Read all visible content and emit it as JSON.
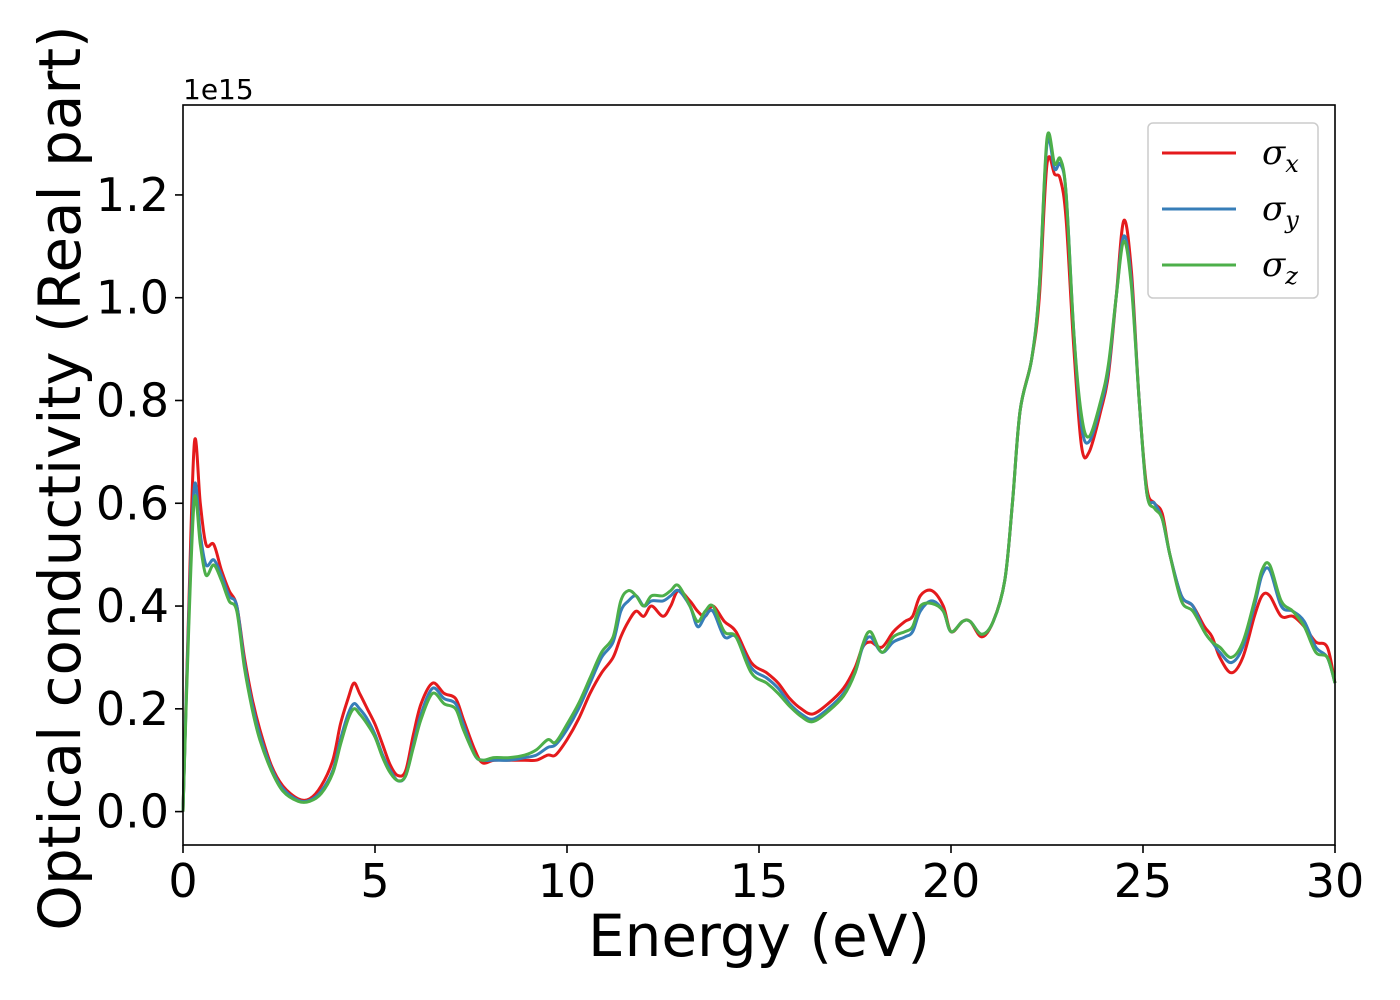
{
  "chart_data": {
    "type": "line",
    "title": "",
    "xlabel": "Energy (eV)",
    "ylabel": "Optical conductivity (Real part)",
    "y_offset_label": "1e15",
    "xlim": [
      0,
      30
    ],
    "ylim": [
      -0.065,
      1.375
    ],
    "x_ticks": [
      0,
      5,
      10,
      15,
      20,
      25,
      30
    ],
    "x_tick_labels": [
      "0",
      "5",
      "10",
      "15",
      "20",
      "25",
      "30"
    ],
    "y_ticks": [
      0.0,
      0.2,
      0.4,
      0.6,
      0.8,
      1.0,
      1.2
    ],
    "y_tick_labels": [
      "0.0",
      "0.2",
      "0.4",
      "0.6",
      "0.8",
      "1.0",
      "1.2"
    ],
    "grid": false,
    "legend_position": "top-right",
    "x": [
      0,
      0.15,
      0.3,
      0.45,
      0.6,
      0.8,
      1.0,
      1.2,
      1.4,
      1.6,
      1.8,
      2.0,
      2.3,
      2.6,
      3.0,
      3.3,
      3.6,
      3.9,
      4.1,
      4.3,
      4.45,
      4.6,
      4.8,
      5.0,
      5.2,
      5.4,
      5.6,
      5.8,
      6.0,
      6.2,
      6.5,
      6.8,
      7.1,
      7.3,
      7.6,
      7.8,
      8.1,
      8.5,
      8.9,
      9.2,
      9.5,
      9.7,
      10.0,
      10.3,
      10.6,
      10.9,
      11.2,
      11.4,
      11.6,
      11.8,
      12.0,
      12.2,
      12.5,
      12.7,
      12.9,
      13.2,
      13.4,
      13.6,
      13.8,
      14.1,
      14.4,
      14.8,
      15.2,
      15.5,
      15.8,
      16.1,
      16.4,
      16.8,
      17.2,
      17.5,
      17.7,
      17.9,
      18.2,
      18.5,
      18.8,
      19.0,
      19.2,
      19.5,
      19.8,
      20.0,
      20.3,
      20.5,
      20.8,
      21.1,
      21.4,
      21.6,
      21.8,
      22.1,
      22.3,
      22.5,
      22.7,
      22.85,
      23.0,
      23.2,
      23.4,
      23.6,
      23.9,
      24.1,
      24.3,
      24.5,
      24.7,
      24.9,
      25.1,
      25.3,
      25.5,
      25.7,
      26.0,
      26.3,
      26.6,
      26.8,
      27.0,
      27.3,
      27.6,
      27.9,
      28.1,
      28.3,
      28.6,
      28.9,
      29.2,
      29.5,
      29.8,
      30.0
    ],
    "series": [
      {
        "name": "σx",
        "color": "#e41a1c",
        "values": [
          0.0,
          0.4,
          0.72,
          0.6,
          0.52,
          0.52,
          0.47,
          0.43,
          0.4,
          0.3,
          0.22,
          0.16,
          0.09,
          0.05,
          0.025,
          0.025,
          0.05,
          0.1,
          0.17,
          0.22,
          0.25,
          0.23,
          0.2,
          0.17,
          0.13,
          0.09,
          0.07,
          0.08,
          0.15,
          0.21,
          0.25,
          0.23,
          0.22,
          0.18,
          0.12,
          0.095,
          0.1,
          0.1,
          0.1,
          0.1,
          0.11,
          0.11,
          0.14,
          0.18,
          0.23,
          0.27,
          0.3,
          0.34,
          0.37,
          0.39,
          0.38,
          0.4,
          0.38,
          0.4,
          0.43,
          0.41,
          0.39,
          0.38,
          0.4,
          0.37,
          0.35,
          0.29,
          0.27,
          0.25,
          0.22,
          0.2,
          0.19,
          0.21,
          0.24,
          0.28,
          0.32,
          0.33,
          0.32,
          0.35,
          0.37,
          0.38,
          0.42,
          0.43,
          0.4,
          0.35,
          0.37,
          0.37,
          0.34,
          0.37,
          0.45,
          0.6,
          0.78,
          0.88,
          1.0,
          1.26,
          1.24,
          1.23,
          1.15,
          0.9,
          0.71,
          0.7,
          0.78,
          0.85,
          1.0,
          1.15,
          1.05,
          0.8,
          0.63,
          0.6,
          0.58,
          0.5,
          0.42,
          0.4,
          0.36,
          0.34,
          0.3,
          0.27,
          0.3,
          0.38,
          0.42,
          0.42,
          0.38,
          0.38,
          0.36,
          0.33,
          0.32,
          0.25
        ]
      },
      {
        "name": "σy",
        "color": "#377eb8",
        "values": [
          0.0,
          0.38,
          0.635,
          0.54,
          0.48,
          0.49,
          0.46,
          0.42,
          0.4,
          0.29,
          0.21,
          0.15,
          0.085,
          0.045,
          0.022,
          0.022,
          0.04,
          0.08,
          0.14,
          0.19,
          0.21,
          0.2,
          0.18,
          0.15,
          0.11,
          0.08,
          0.06,
          0.07,
          0.13,
          0.19,
          0.24,
          0.22,
          0.21,
          0.17,
          0.11,
          0.1,
          0.1,
          0.1,
          0.105,
          0.11,
          0.125,
          0.13,
          0.16,
          0.2,
          0.25,
          0.3,
          0.33,
          0.39,
          0.41,
          0.42,
          0.4,
          0.41,
          0.41,
          0.42,
          0.43,
          0.4,
          0.36,
          0.38,
          0.39,
          0.34,
          0.34,
          0.28,
          0.26,
          0.24,
          0.21,
          0.19,
          0.18,
          0.2,
          0.23,
          0.27,
          0.32,
          0.34,
          0.31,
          0.33,
          0.34,
          0.35,
          0.39,
          0.41,
          0.39,
          0.35,
          0.37,
          0.37,
          0.345,
          0.37,
          0.45,
          0.6,
          0.78,
          0.88,
          1.02,
          1.3,
          1.25,
          1.26,
          1.2,
          0.93,
          0.75,
          0.72,
          0.79,
          0.86,
          1.0,
          1.12,
          1.03,
          0.8,
          0.62,
          0.6,
          0.57,
          0.5,
          0.42,
          0.4,
          0.35,
          0.33,
          0.31,
          0.29,
          0.32,
          0.4,
          0.46,
          0.47,
          0.4,
          0.39,
          0.37,
          0.32,
          0.3,
          0.25
        ]
      },
      {
        "name": "σz",
        "color": "#4daf4a",
        "values": [
          0.0,
          0.36,
          0.61,
          0.52,
          0.46,
          0.48,
          0.45,
          0.41,
          0.39,
          0.28,
          0.2,
          0.14,
          0.08,
          0.04,
          0.02,
          0.02,
          0.035,
          0.075,
          0.13,
          0.18,
          0.2,
          0.19,
          0.17,
          0.145,
          0.105,
          0.075,
          0.06,
          0.07,
          0.125,
          0.18,
          0.23,
          0.21,
          0.2,
          0.16,
          0.11,
          0.1,
          0.105,
          0.105,
          0.11,
          0.12,
          0.14,
          0.135,
          0.17,
          0.21,
          0.26,
          0.31,
          0.34,
          0.41,
          0.43,
          0.42,
          0.4,
          0.42,
          0.42,
          0.43,
          0.44,
          0.4,
          0.37,
          0.39,
          0.4,
          0.35,
          0.34,
          0.27,
          0.25,
          0.23,
          0.205,
          0.185,
          0.175,
          0.195,
          0.225,
          0.27,
          0.325,
          0.35,
          0.31,
          0.34,
          0.35,
          0.36,
          0.4,
          0.405,
          0.39,
          0.35,
          0.37,
          0.37,
          0.345,
          0.37,
          0.45,
          0.6,
          0.78,
          0.88,
          1.02,
          1.31,
          1.26,
          1.27,
          1.2,
          0.93,
          0.77,
          0.73,
          0.8,
          0.87,
          1.0,
          1.11,
          1.02,
          0.8,
          0.62,
          0.59,
          0.57,
          0.5,
          0.41,
          0.39,
          0.35,
          0.33,
          0.32,
          0.3,
          0.33,
          0.41,
          0.47,
          0.48,
          0.41,
          0.39,
          0.36,
          0.31,
          0.3,
          0.25
        ]
      }
    ]
  }
}
